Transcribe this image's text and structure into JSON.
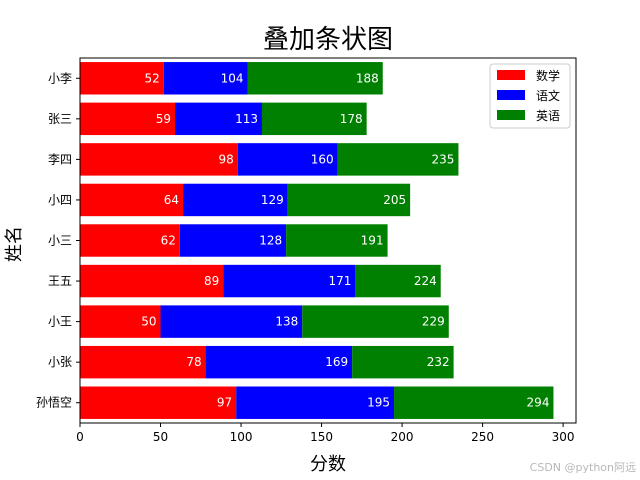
{
  "chart_data": {
    "type": "bar",
    "orientation": "horizontal",
    "stacked": true,
    "title": "叠加条状图",
    "xlabel": "分数",
    "ylabel": "姓名",
    "xlim": [
      0,
      308
    ],
    "xticks": [
      0,
      50,
      100,
      150,
      200,
      250,
      300
    ],
    "categories": [
      "孙悟空",
      "小张",
      "小王",
      "王五",
      "小三",
      "小四",
      "李四",
      "张三",
      "小李"
    ],
    "series": [
      {
        "name": "数学",
        "color": "#ff0000",
        "values": [
          97,
          78,
          50,
          89,
          62,
          64,
          98,
          59,
          52
        ]
      },
      {
        "name": "语文",
        "color": "#0000ff",
        "values": [
          98,
          91,
          88,
          82,
          66,
          65,
          62,
          54,
          52
        ]
      },
      {
        "name": "英语",
        "color": "#008000",
        "values": [
          99,
          63,
          91,
          53,
          63,
          76,
          75,
          65,
          84
        ]
      }
    ],
    "cumulative_labels": [
      [
        97,
        78,
        50,
        89,
        62,
        64,
        98,
        59,
        52
      ],
      [
        195,
        169,
        138,
        171,
        128,
        129,
        160,
        113,
        104
      ],
      [
        294,
        232,
        229,
        224,
        191,
        205,
        235,
        178,
        188
      ]
    ],
    "legend": "top-right",
    "grid": false
  },
  "watermark": "CSDN @python阿远"
}
